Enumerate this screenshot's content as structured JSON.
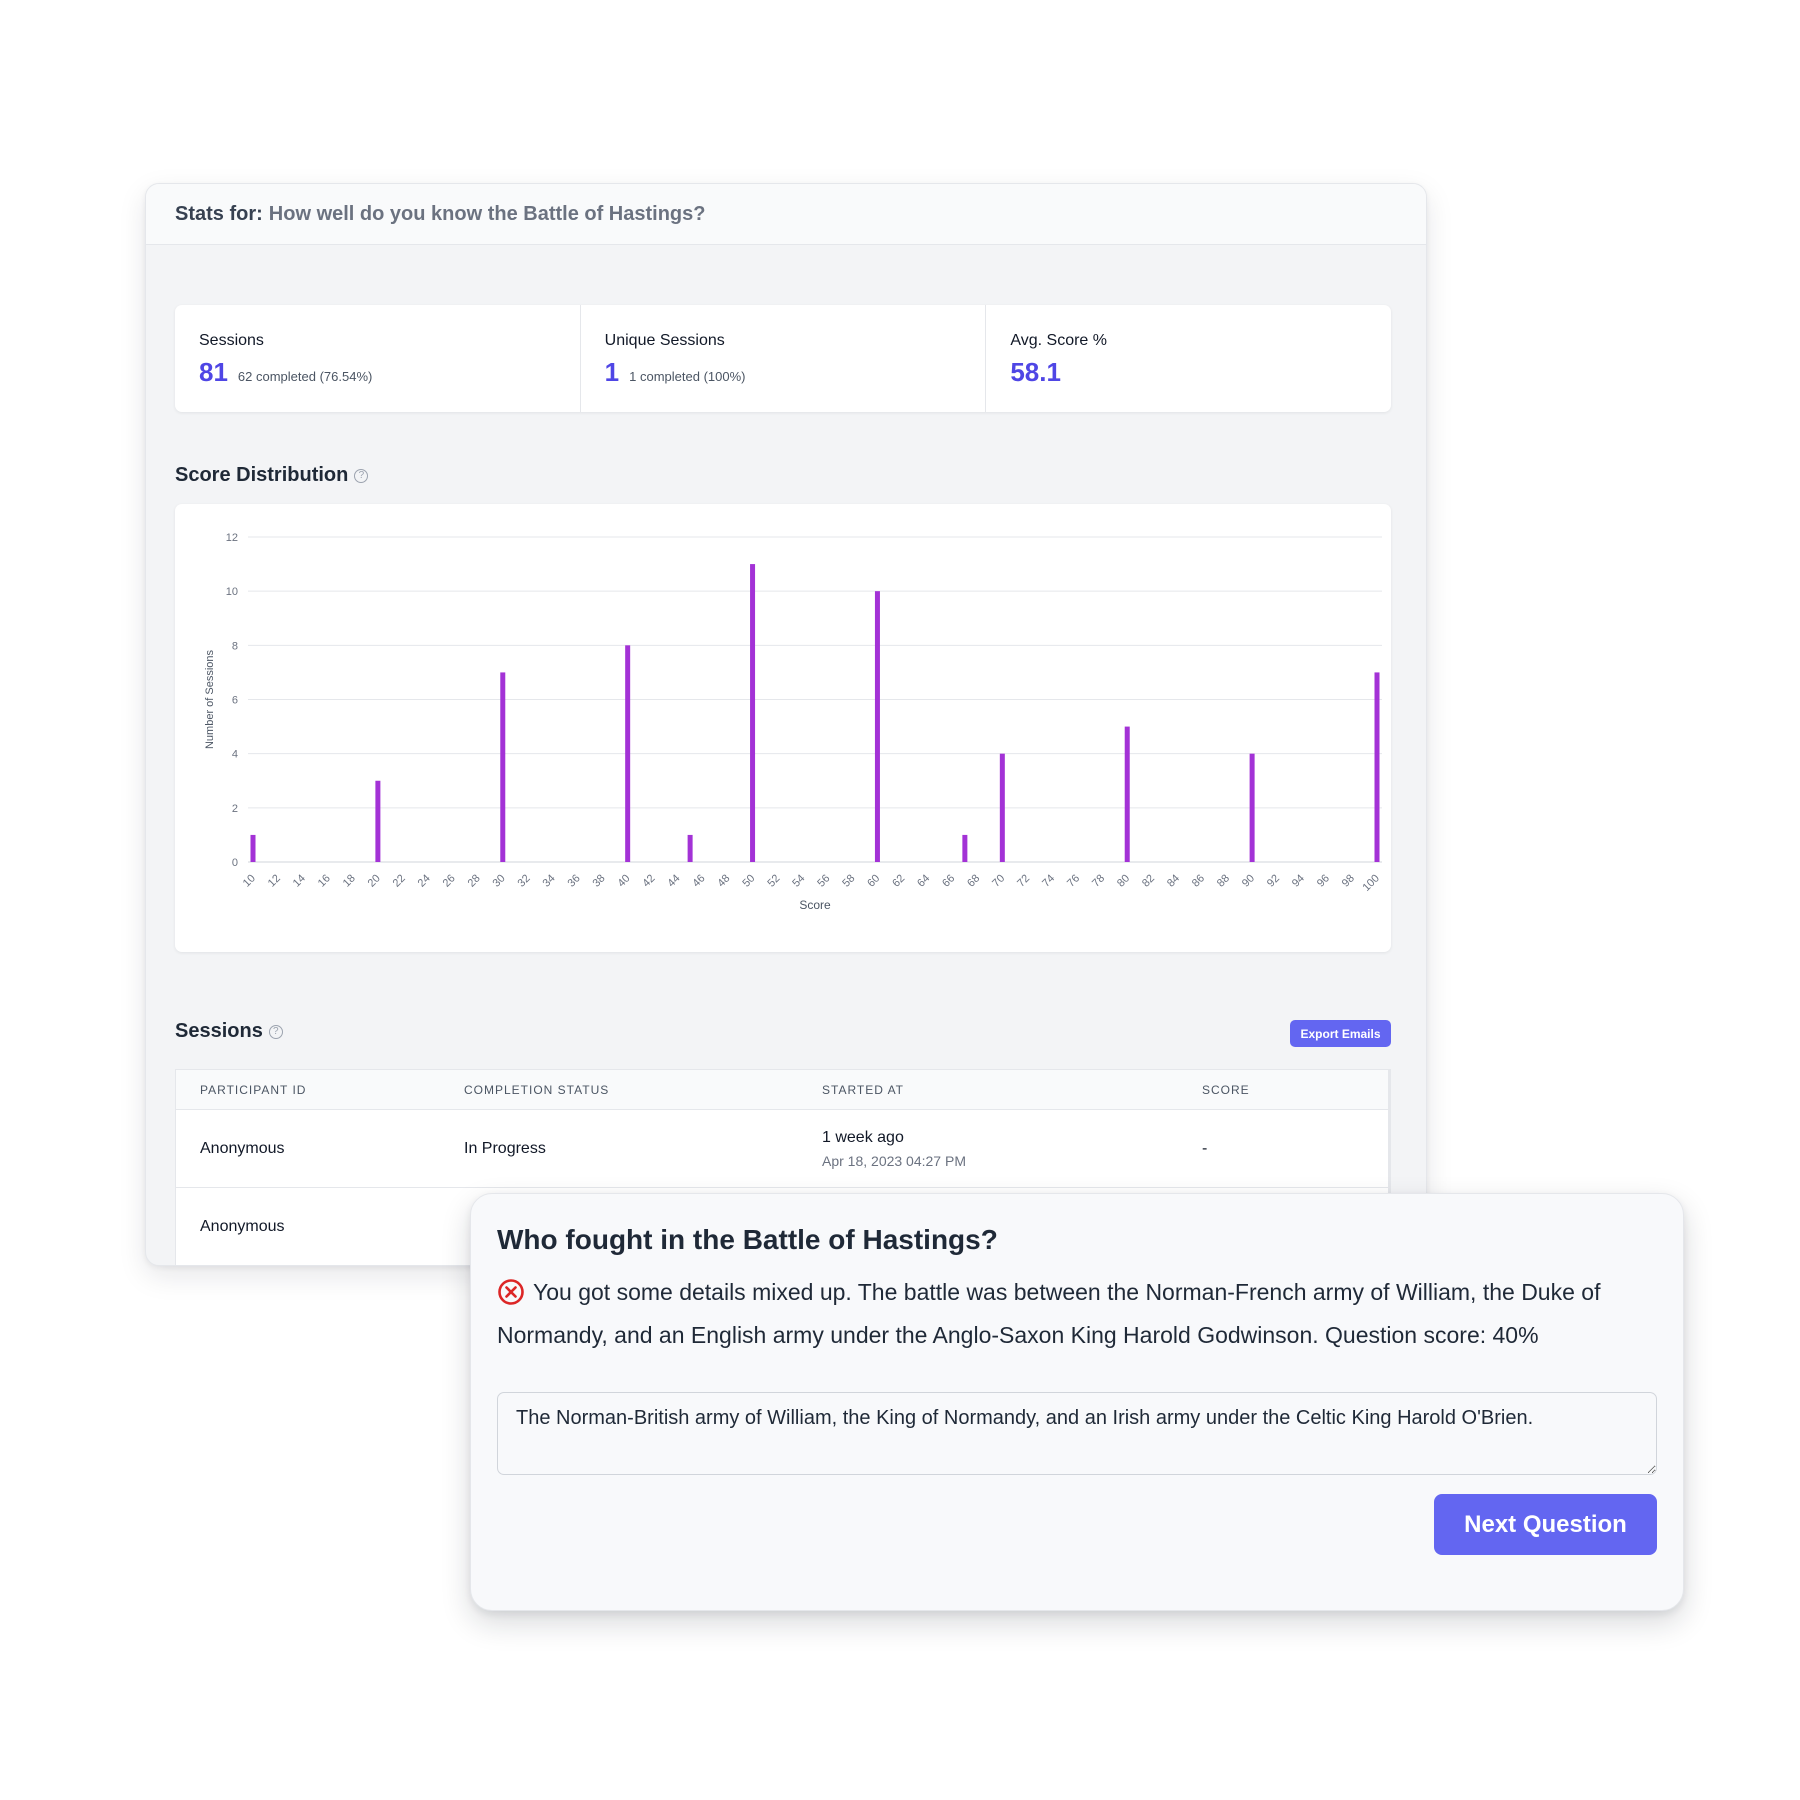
{
  "header": {
    "label": "Stats for:",
    "quiz_title": "How well do you know the Battle of Hastings?"
  },
  "kpis": [
    {
      "label": "Sessions",
      "value": "81",
      "sub": "62 completed (76.54%)"
    },
    {
      "label": "Unique Sessions",
      "value": "1",
      "sub": "1 completed (100%)"
    },
    {
      "label": "Avg. Score %",
      "value": "58.1",
      "sub": ""
    }
  ],
  "score_distribution": {
    "title": "Score Distribution",
    "help": "?"
  },
  "chart_data": {
    "type": "bar",
    "xlabel": "Score",
    "ylabel": "Number of Sessions",
    "ylim": [
      0,
      12
    ],
    "yticks": [
      0,
      2,
      4,
      6,
      8,
      10,
      12
    ],
    "xlim": [
      10,
      100
    ],
    "xticks": [
      10,
      12,
      14,
      16,
      18,
      20,
      22,
      24,
      26,
      28,
      30,
      32,
      34,
      36,
      38,
      40,
      42,
      44,
      46,
      48,
      50,
      52,
      54,
      56,
      58,
      60,
      62,
      64,
      66,
      68,
      70,
      72,
      74,
      76,
      78,
      80,
      82,
      84,
      86,
      88,
      90,
      92,
      94,
      96,
      98,
      100
    ],
    "points": [
      {
        "x": 10,
        "y": 1
      },
      {
        "x": 20,
        "y": 3
      },
      {
        "x": 30,
        "y": 7
      },
      {
        "x": 40,
        "y": 8
      },
      {
        "x": 45,
        "y": 1
      },
      {
        "x": 50,
        "y": 11
      },
      {
        "x": 60,
        "y": 10
      },
      {
        "x": 67,
        "y": 1
      },
      {
        "x": 70,
        "y": 4
      },
      {
        "x": 80,
        "y": 5
      },
      {
        "x": 90,
        "y": 4
      },
      {
        "x": 100,
        "y": 7
      }
    ],
    "grid": true,
    "bar_color": "#a332d6"
  },
  "sessions": {
    "title": "Sessions",
    "help": "?",
    "export_label": "Export Emails",
    "columns": [
      "PARTICIPANT ID",
      "COMPLETION STATUS",
      "STARTED AT",
      "SCORE"
    ],
    "rows": [
      {
        "participant": "Anonymous",
        "status": "In Progress",
        "started": "1 week ago",
        "started_date": "Apr 18, 2023 04:27 PM",
        "score": "-"
      },
      {
        "participant": "Anonymous",
        "status": "",
        "started": "",
        "started_date": "",
        "score": ""
      }
    ]
  },
  "question": {
    "title": "Who fought in the Battle of Hastings?",
    "feedback_icon": "x-circle-icon",
    "feedback": "You got some details mixed up. The battle was between the Norman-French army of William, the Duke of Normandy, and an English army under the Anglo-Saxon King Harold Godwinson. Question score: 40%",
    "answer": "The Norman-British army of William, the King of Normandy, and an Irish army under the Celtic King Harold O'Brien.",
    "next_label": "Next Question"
  },
  "colors": {
    "accent": "#6366f1",
    "value_text": "#4f46e5",
    "bar": "#a332d6",
    "error": "#dc2626"
  }
}
